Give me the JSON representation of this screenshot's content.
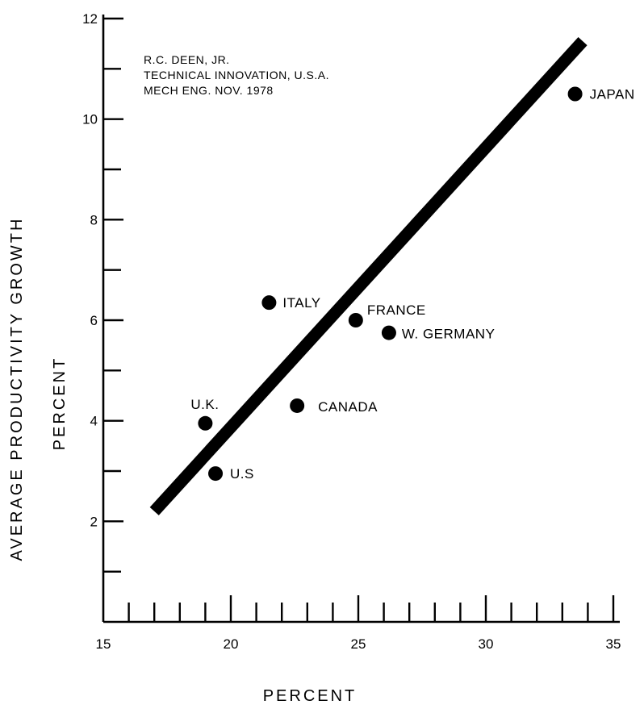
{
  "chart_data": {
    "type": "scatter",
    "source_note": [
      "R.C. DEEN, JR.",
      "TECHNICAL  INNOVATION, U.S.A.",
      "MECH  ENG.  NOV.  1978"
    ],
    "xlabel": "PERCENT",
    "ylabel": "AVERAGE  PRODUCTIVITY  GROWTH",
    "ylabel2": "PERCENT",
    "xlim": [
      15,
      35
    ],
    "ylim": [
      0,
      12
    ],
    "x_ticks": [
      15,
      20,
      25,
      30,
      35
    ],
    "y_ticks": [
      2,
      4,
      6,
      8,
      10,
      12
    ],
    "x_minor_step": 1,
    "y_minor_step": 1,
    "grid": false,
    "points": [
      {
        "label": "JAPAN",
        "x": 33.5,
        "y": 10.5
      },
      {
        "label": "ITALY",
        "x": 21.5,
        "y": 6.35
      },
      {
        "label": "FRANCE",
        "x": 24.9,
        "y": 6.0
      },
      {
        "label": "W. GERMANY",
        "x": 26.2,
        "y": 5.75
      },
      {
        "label": "CANADA",
        "x": 22.6,
        "y": 4.3
      },
      {
        "label": "U.K.",
        "x": 19.0,
        "y": 3.95
      },
      {
        "label": "U.S",
        "x": 19.4,
        "y": 2.95
      }
    ],
    "trendline": {
      "x": [
        17.0,
        33.8
      ],
      "y": [
        2.2,
        11.55
      ]
    }
  }
}
